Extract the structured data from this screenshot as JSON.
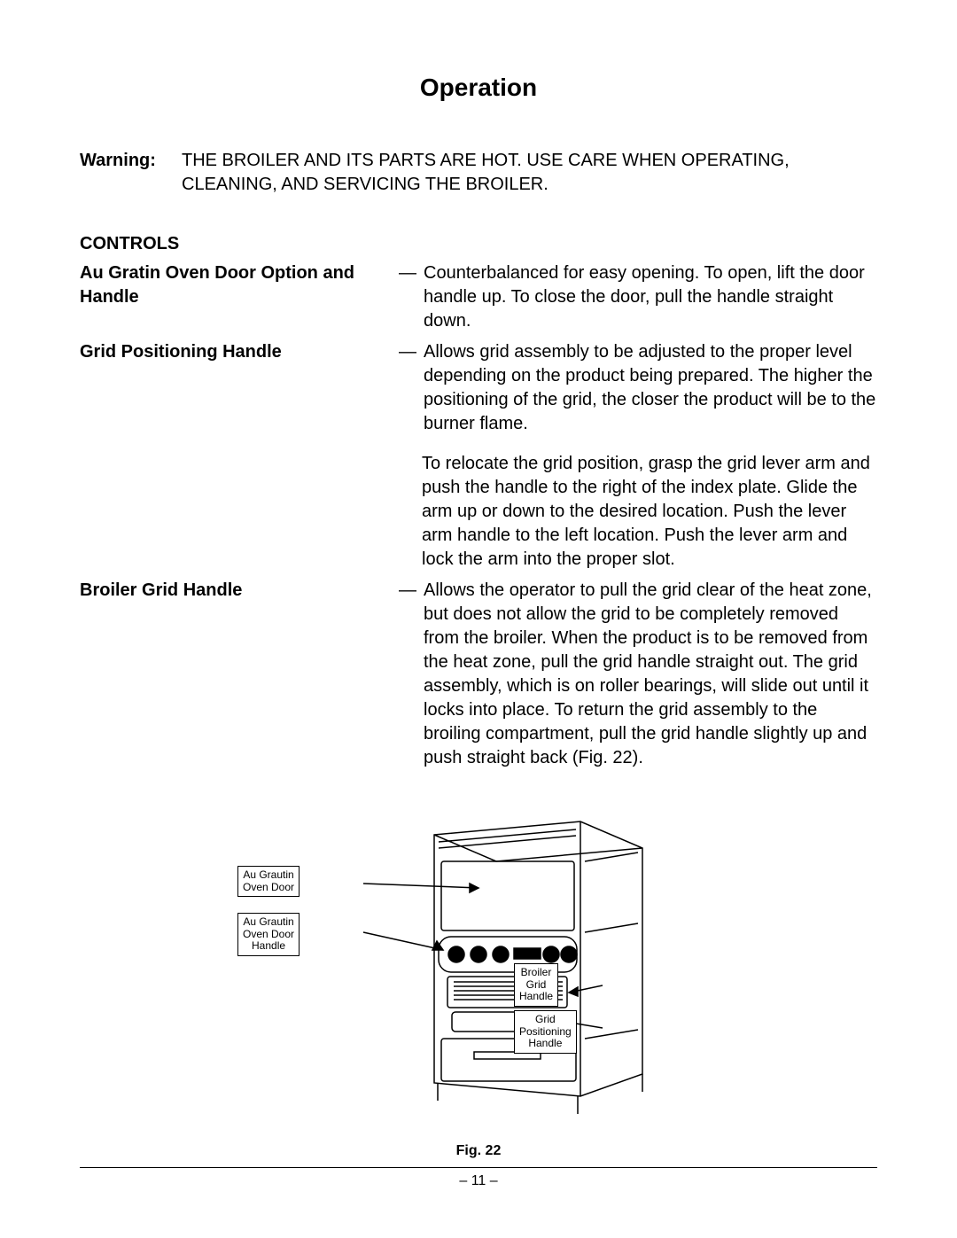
{
  "title": "Operation",
  "warning": {
    "label": "Warning:",
    "text": "THE BROILER AND ITS PARTS ARE HOT. USE CARE WHEN OPERATING, CLEANING, AND SERVICING THE BROILER."
  },
  "controls_heading": "CONTROLS",
  "controls": [
    {
      "label": "Au Gratin Oven Door Option and Handle",
      "desc": "Counterbalanced for easy opening. To open, lift the door handle up. To close the door, pull the handle straight down."
    },
    {
      "label": "Grid Positioning Handle",
      "desc": "Allows grid assembly to be adjusted to the proper level depending on the product being prepared. The higher the positioning of the grid, the closer the product will be to the burner flame.",
      "extra": "To relocate the grid position, grasp the grid lever arm and push the handle to the right of the index plate. Glide the arm up or down to the desired location. Push the lever arm handle to the left location. Push the lever arm and lock the arm into the proper slot."
    },
    {
      "label": "Broiler Grid Handle",
      "desc": "Allows the operator to pull the grid clear of the heat zone, but does not allow the grid to be completely removed from the broiler. When the product is to be removed from the heat zone, pull the grid handle straight out. The grid assembly, which is on roller bearings, will slide out until it locks into place. To return the grid assembly to the broiling compartment, pull the grid handle slightly up and push straight back (Fig. 22)."
    }
  ],
  "diagram": {
    "labels": {
      "au_grautin_door": "Au Grautin\nOven Door",
      "au_grautin_handle": "Au Grautin\nOven Door\nHandle",
      "broiler_grid_handle": "Broiler\nGrid\nHandle",
      "grid_positioning_handle": "Grid\nPositioning\nHandle"
    },
    "caption": "Fig. 22"
  },
  "page_number": "– 11 –"
}
